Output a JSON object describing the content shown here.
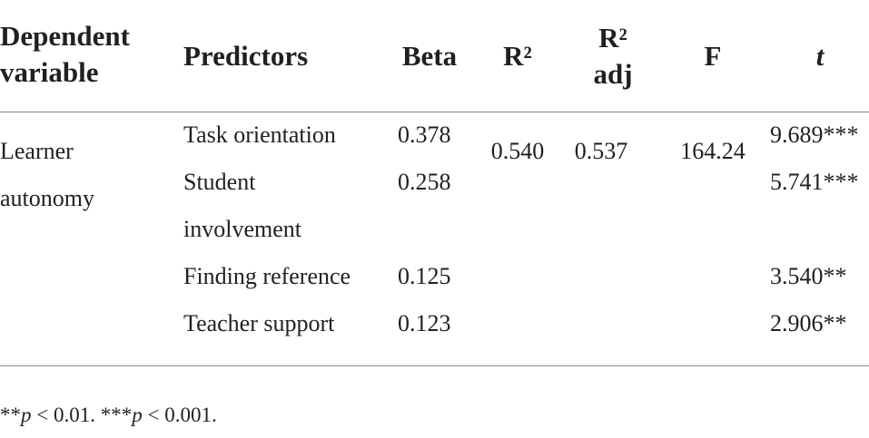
{
  "table": {
    "header": [
      "Dependent variable",
      "Predictors",
      "Beta",
      "R²",
      "R² adj",
      "F",
      "t"
    ],
    "dependent": "Learner autonomy",
    "model": {
      "r2": "0.540",
      "r2_adj": "0.537",
      "f": "164.24"
    },
    "rows": [
      [
        "Task orientation",
        "0.378",
        "9.689***"
      ],
      [
        "Student involvement",
        "0.258",
        "5.741***"
      ],
      [
        "Finding reference",
        "0.125",
        "3.540**"
      ],
      [
        "Teacher support",
        "0.123",
        "2.906**"
      ]
    ]
  },
  "footnote": [
    "**",
    "p",
    " < 0.01. ***",
    "p",
    " < 0.001."
  ]
}
